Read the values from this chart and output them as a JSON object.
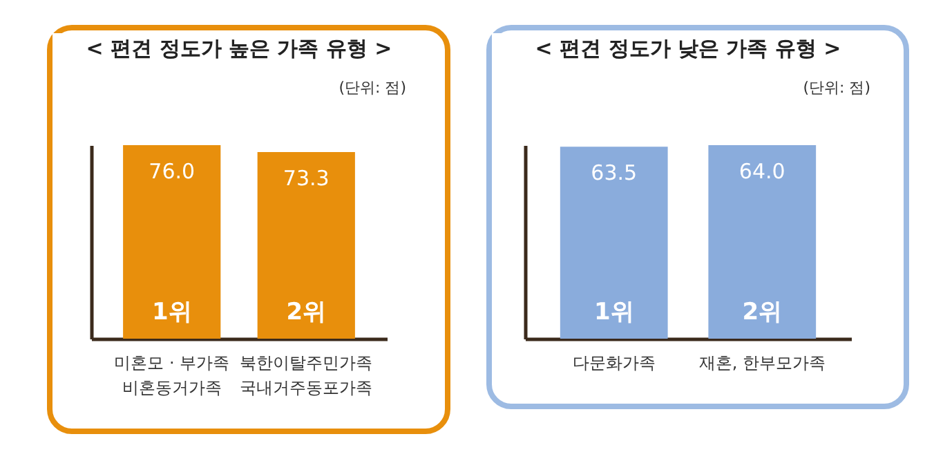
{
  "chart_data": [
    {
      "type": "bar",
      "title": "< 편견 정도가 높은 가족 유형 >",
      "subtitle": "(단위: 점)",
      "categories": [
        "미혼모 · 부가족\n비혼동거가족",
        "북한이탈주민가족\n국내거주동포가족"
      ],
      "series": [
        {
          "color": "#e88f0c",
          "values": [
            76.0,
            73.3
          ],
          "value_labels": [
            "76.0",
            "73.3"
          ]
        }
      ],
      "grid": false,
      "annotations": [
        "1위",
        "2위"
      ]
    },
    {
      "type": "bar",
      "title": "< 편견 정도가 낮은 가족 유형 >",
      "subtitle": "(단위: 점)",
      "categories": [
        "다문화가족",
        "재혼, 한부모가족"
      ],
      "series": [
        {
          "color": "#8aacdc",
          "values": [
            63.5,
            64.0
          ],
          "value_labels": [
            "63.5",
            "64.0"
          ]
        }
      ],
      "grid": false,
      "annotations": [
        "1위",
        "2위"
      ]
    }
  ]
}
